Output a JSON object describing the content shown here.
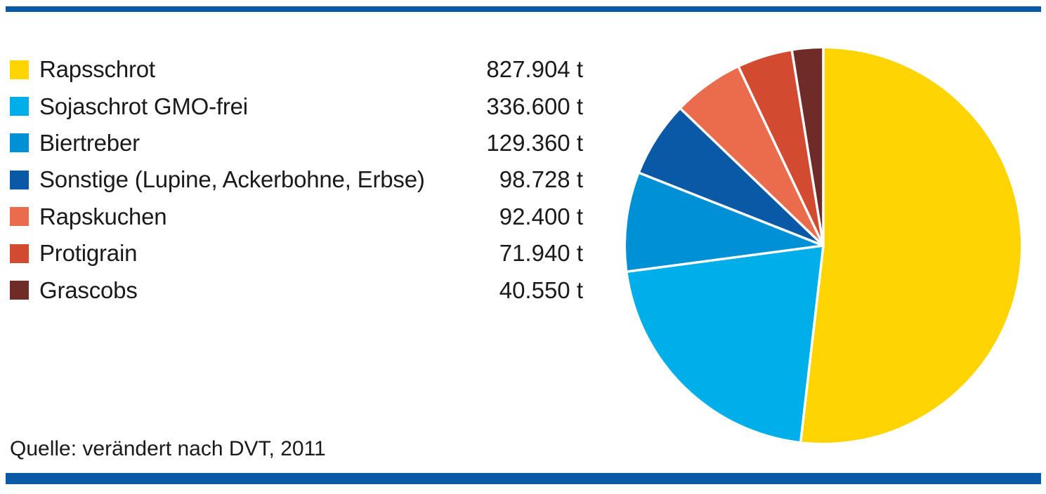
{
  "page": {
    "accent_bar_color": "#0b5aa5",
    "source_note": "Quelle: verändert nach DVT, 2011"
  },
  "chart_data": {
    "type": "pie",
    "unit": "t",
    "total": 1597482,
    "legend_position": "left",
    "start_angle_deg": 0,
    "direction": "clockwise",
    "separator_color": "#ffffff",
    "series": [
      {
        "label": "Rapsschrot",
        "value": 827904,
        "value_label": "827.904 t",
        "color": "#ffd400"
      },
      {
        "label": "Sojaschrot GMO-frei",
        "value": 336600,
        "value_label": "336.600 t",
        "color": "#00aee9"
      },
      {
        "label": "Biertreber",
        "value": 129360,
        "value_label": "129.360 t",
        "color": "#0090d5"
      },
      {
        "label": "Sonstige (Lupine, Ackerbohne, Erbse)",
        "value": 98728,
        "value_label": "98.728 t",
        "color": "#0a59a6"
      },
      {
        "label": "Rapskuchen",
        "value": 92400,
        "value_label": "92.400 t",
        "color": "#eb6b4d"
      },
      {
        "label": "Protigrain",
        "value": 71940,
        "value_label": "71.940 t",
        "color": "#d24a30"
      },
      {
        "label": "Grascobs",
        "value": 40550,
        "value_label": "40.550 t",
        "color": "#6e2b27"
      }
    ]
  }
}
